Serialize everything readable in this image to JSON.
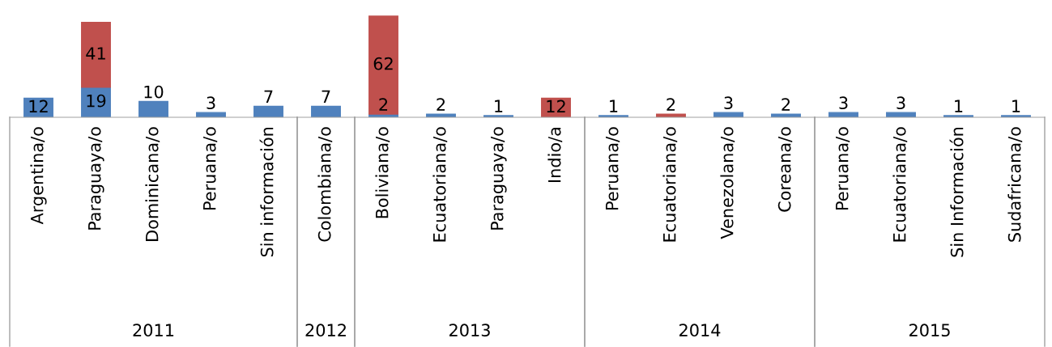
{
  "chart_data": [
    {
      "type": "bar",
      "stacked": true,
      "data_labels": true,
      "tick_labels": "x",
      "title": "2011",
      "categories": [
        "Argentina/o",
        "Paraguaya/o",
        "Dominicana/o",
        "Peruana/o",
        "Sin información"
      ],
      "series": [
        {
          "color": "#4f81bd",
          "values": [
            12,
            19,
            10,
            3,
            7
          ]
        },
        {
          "color": "#c0504d",
          "values": [
            null,
            41,
            null,
            null,
            null
          ]
        }
      ]
    },
    {
      "type": "bar",
      "stacked": true,
      "data_labels": true,
      "tick_labels": "x",
      "title": "2012",
      "categories": [
        "Colombiana/o"
      ],
      "series": [
        {
          "color": "#4f81bd",
          "values": [
            7
          ]
        }
      ]
    },
    {
      "type": "bar",
      "stacked": true,
      "data_labels": true,
      "tick_labels": "x",
      "title": "2013",
      "categories": [
        "Boliviana/o",
        "Ecuatoriana/o",
        "Paraguaya/o",
        "Indio/a"
      ],
      "series": [
        {
          "color": "#4f81bd",
          "values": [
            2,
            2,
            1,
            null
          ]
        },
        {
          "color": "#c0504d",
          "values": [
            62,
            null,
            null,
            12
          ]
        }
      ]
    },
    {
      "type": "bar",
      "stacked": true,
      "data_labels": true,
      "tick_labels": "x",
      "title": "2014",
      "categories": [
        "Peruana/o",
        "Ecuatoriana/o",
        "Venezolana/o",
        "Coreana/o"
      ],
      "series": [
        {
          "color": "#4f81bd",
          "values": [
            1,
            null,
            3,
            2
          ]
        },
        {
          "color": "#c0504d",
          "values": [
            null,
            2,
            null,
            null
          ]
        }
      ]
    },
    {
      "type": "bar",
      "stacked": true,
      "data_labels": true,
      "tick_labels": "x",
      "title": "2015",
      "categories": [
        "Peruana/o",
        "Ecuatoriana/o",
        "Sin Información",
        "Sudafricana/o"
      ],
      "series": [
        {
          "color": "#4f81bd",
          "values": [
            3,
            3,
            1,
            1
          ]
        }
      ]
    }
  ]
}
